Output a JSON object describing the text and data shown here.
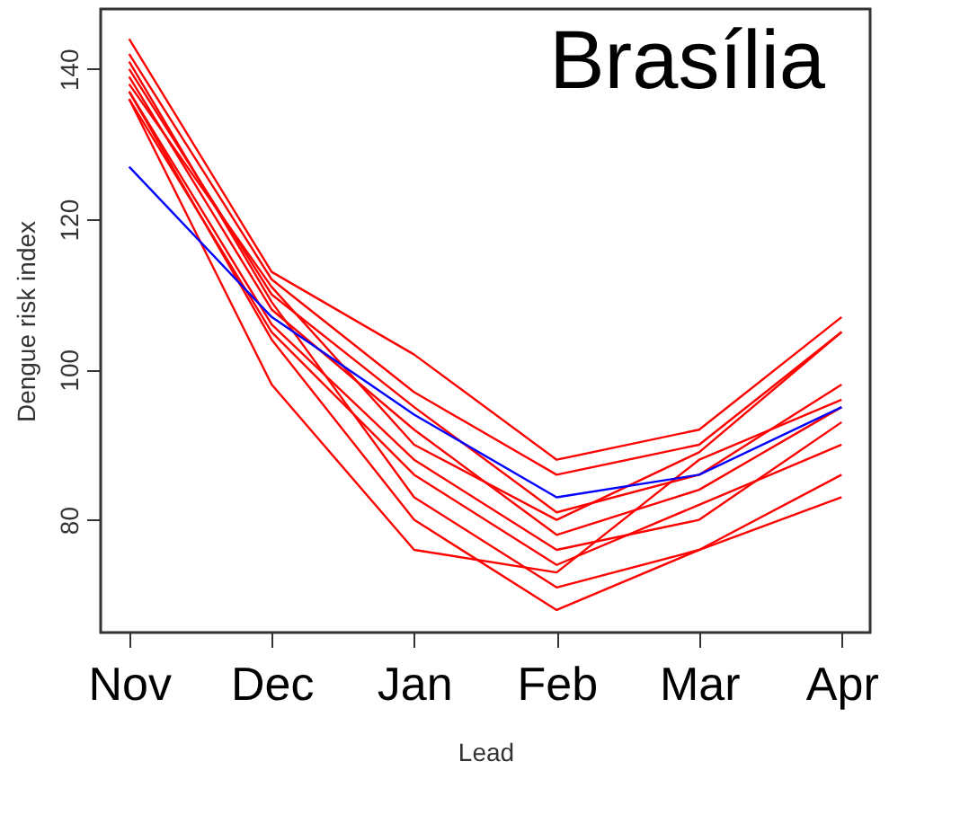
{
  "chart_data": {
    "type": "line",
    "title": "Brasília",
    "xlabel": "Lead",
    "ylabel": "Dengue risk index",
    "categories": [
      "Nov",
      "Dec",
      "Jan",
      "Feb",
      "Mar",
      "Apr"
    ],
    "ylim": [
      65,
      148
    ],
    "yticks": [
      80,
      100,
      120,
      140
    ],
    "grid": false,
    "legend": false,
    "marker": "none",
    "line_style": "solid",
    "series": [
      {
        "color": "#ff0000",
        "values": [
          144,
          113,
          102,
          88,
          92,
          107
        ]
      },
      {
        "color": "#ff0000",
        "values": [
          142,
          112,
          97,
          86,
          90,
          105
        ]
      },
      {
        "color": "#ff0000",
        "values": [
          140,
          110,
          95,
          81,
          86,
          98
        ]
      },
      {
        "color": "#ff0000",
        "values": [
          139,
          108,
          92,
          78,
          84,
          95
        ]
      },
      {
        "color": "#ff0000",
        "values": [
          138,
          111,
          90,
          80,
          89,
          105
        ]
      },
      {
        "color": "#ff0000",
        "values": [
          137,
          106,
          88,
          76,
          80,
          93
        ]
      },
      {
        "color": "#ff0000",
        "values": [
          136,
          105,
          86,
          74,
          82,
          90
        ]
      },
      {
        "color": "#ff0000",
        "values": [
          141,
          109,
          83,
          71,
          76,
          86
        ]
      },
      {
        "color": "#ff0000",
        "values": [
          137,
          104,
          80,
          68,
          76,
          83
        ]
      },
      {
        "color": "#ff0000",
        "values": [
          136,
          98,
          76,
          73,
          88,
          96
        ]
      },
      {
        "color": "#0000ff",
        "values": [
          127,
          107,
          94,
          83,
          86,
          95
        ]
      }
    ]
  }
}
